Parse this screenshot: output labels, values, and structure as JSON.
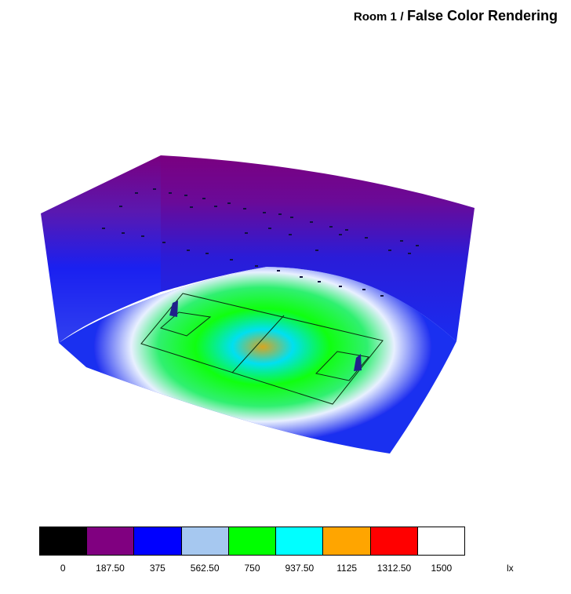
{
  "title": {
    "room": "Room 1",
    "separator": "/",
    "main": "False Color Rendering"
  },
  "legend": {
    "colors": [
      "#000000",
      "#800080",
      "#0000ff",
      "#a6c8f0",
      "#00ff00",
      "#00ffff",
      "#ffa500",
      "#ff0000",
      "#ffffff"
    ],
    "ticks": [
      "0",
      "187.50",
      "375",
      "562.50",
      "750",
      "937.50",
      "1125",
      "1312.50",
      "1500"
    ],
    "unit": "lx"
  },
  "scene": {
    "wall_top_color": "#7a0080",
    "wall_bottom_color": "#2a1cd8",
    "floor_colors": [
      "#d8a520",
      "#00e0f0",
      "#10ff10",
      "#e8f0ff",
      "#2030f0"
    ]
  }
}
